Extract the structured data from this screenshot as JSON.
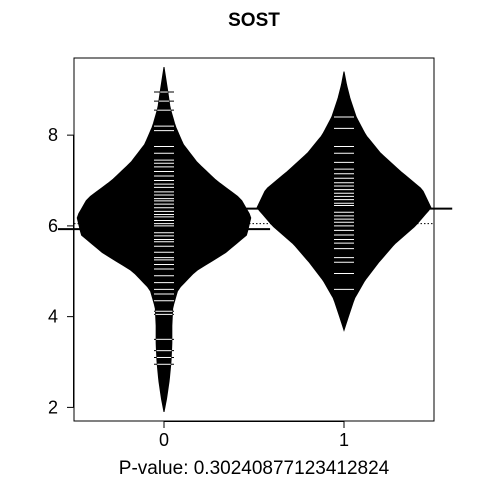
{
  "chart_data": {
    "type": "beanplot",
    "title": "SOST",
    "xlabel": "P-value: 0.30240877123412824",
    "ylabel": "",
    "categories": [
      "0",
      "1"
    ],
    "y_ticks": [
      2,
      4,
      6,
      8
    ],
    "ylim": [
      1.7,
      9.7
    ],
    "overall_mean": 6.05,
    "groups": [
      {
        "name": "0",
        "mean": 5.93,
        "density_profile": [
          [
            1.9,
            0.0
          ],
          [
            2.2,
            0.03
          ],
          [
            2.6,
            0.06
          ],
          [
            3.0,
            0.08
          ],
          [
            3.4,
            0.09
          ],
          [
            3.8,
            0.09
          ],
          [
            4.2,
            0.1
          ],
          [
            4.6,
            0.16
          ],
          [
            5.0,
            0.36
          ],
          [
            5.4,
            0.7
          ],
          [
            5.8,
            0.95
          ],
          [
            6.2,
            1.0
          ],
          [
            6.6,
            0.88
          ],
          [
            7.0,
            0.6
          ],
          [
            7.4,
            0.38
          ],
          [
            7.8,
            0.22
          ],
          [
            8.2,
            0.13
          ],
          [
            8.6,
            0.07
          ],
          [
            9.0,
            0.04
          ],
          [
            9.5,
            0.0
          ]
        ],
        "observations": [
          2.95,
          3.1,
          3.25,
          3.5,
          4.05,
          4.12,
          4.35,
          4.5,
          4.6,
          4.75,
          4.9,
          5.05,
          5.15,
          5.25,
          5.3,
          5.42,
          5.55,
          5.65,
          5.7,
          5.78,
          5.85,
          5.92,
          6.0,
          6.05,
          6.12,
          6.2,
          6.25,
          6.32,
          6.4,
          6.48,
          6.55,
          6.6,
          6.68,
          6.75,
          6.85,
          6.92,
          7.0,
          7.1,
          7.2,
          7.3,
          7.38,
          7.45,
          7.6,
          7.75,
          8.1,
          8.2,
          8.55,
          8.75,
          8.95
        ]
      },
      {
        "name": "1",
        "mean": 6.38,
        "density_profile": [
          [
            3.7,
            0.0
          ],
          [
            4.0,
            0.05
          ],
          [
            4.4,
            0.12
          ],
          [
            4.8,
            0.24
          ],
          [
            5.2,
            0.4
          ],
          [
            5.6,
            0.58
          ],
          [
            6.0,
            0.82
          ],
          [
            6.4,
            1.0
          ],
          [
            6.8,
            0.9
          ],
          [
            7.2,
            0.65
          ],
          [
            7.6,
            0.42
          ],
          [
            8.0,
            0.25
          ],
          [
            8.4,
            0.14
          ],
          [
            8.8,
            0.07
          ],
          [
            9.1,
            0.03
          ],
          [
            9.4,
            0.0
          ]
        ],
        "observations": [
          4.6,
          4.95,
          5.2,
          5.3,
          5.5,
          5.62,
          5.7,
          5.8,
          5.9,
          6.0,
          6.08,
          6.15,
          6.22,
          6.3,
          6.38,
          6.45,
          6.5,
          6.58,
          6.65,
          6.72,
          6.8,
          6.88,
          6.95,
          7.05,
          7.15,
          7.25,
          7.4,
          7.6,
          7.75,
          8.15,
          8.4
        ]
      }
    ],
    "grid": false,
    "legend": "none"
  }
}
